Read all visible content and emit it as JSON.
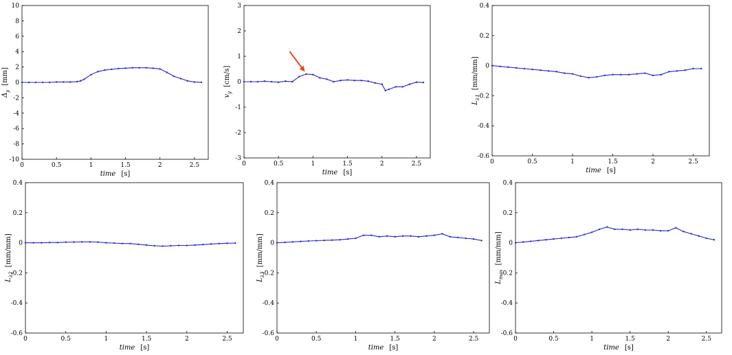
{
  "colors": {
    "series": "#2323d8",
    "axis": "#000000",
    "annotation": "#e8481f"
  },
  "chart_data": [
    {
      "type": "line",
      "xlabel_main": "time",
      "xlabel_unit": "[s]",
      "ylabel_sym": "Δ",
      "ylabel_sub": "y",
      "ylabel_unit": "[mm]",
      "xlim": [
        0,
        2.7
      ],
      "ylim": [
        -10,
        10
      ],
      "xticks": [
        0,
        0.5,
        1,
        1.5,
        2,
        2.5
      ],
      "xtick_labels": [
        "0",
        "0.5",
        "1",
        "1.5",
        "2",
        "2.5"
      ],
      "yticks": [
        -10,
        -8,
        -6,
        -4,
        -2,
        0,
        2,
        4,
        6,
        8,
        10
      ],
      "ytick_labels": [
        "-10",
        "-8",
        "-6",
        "-4",
        "-2",
        "0",
        "2",
        "4",
        "6",
        "8",
        "10"
      ],
      "series": [
        {
          "x": [
            0,
            0.1,
            0.2,
            0.3,
            0.4,
            0.5,
            0.6,
            0.7,
            0.8,
            0.85,
            0.9,
            1.0,
            1.1,
            1.2,
            1.3,
            1.4,
            1.5,
            1.6,
            1.7,
            1.8,
            1.9,
            2.0,
            2.1,
            2.2,
            2.3,
            2.4,
            2.5,
            2.6
          ],
          "y": [
            0,
            0,
            0,
            0,
            0,
            0.05,
            0.05,
            0.05,
            0.1,
            0.2,
            0.4,
            1.0,
            1.4,
            1.6,
            1.7,
            1.8,
            1.85,
            1.9,
            1.9,
            1.9,
            1.85,
            1.75,
            1.3,
            0.8,
            0.5,
            0.2,
            0.05,
            0.02
          ]
        }
      ],
      "grid": false
    },
    {
      "type": "line",
      "xlabel_main": "time",
      "xlabel_unit": "[s]",
      "ylabel_sym": "v",
      "ylabel_sub": "y",
      "ylabel_unit": "[cm/s]",
      "xlim": [
        0,
        2.7
      ],
      "ylim": [
        -3,
        3
      ],
      "xticks": [
        0,
        0.5,
        1,
        1.5,
        2,
        2.5
      ],
      "xtick_labels": [
        "0",
        "0.5",
        "1",
        "1.5",
        "2",
        "2.5"
      ],
      "yticks": [
        -3,
        -2,
        -1,
        0,
        1,
        2,
        3
      ],
      "ytick_labels": [
        "-3",
        "-2",
        "-1",
        "0",
        "1",
        "2",
        "3"
      ],
      "series": [
        {
          "x": [
            0,
            0.1,
            0.2,
            0.3,
            0.4,
            0.5,
            0.6,
            0.7,
            0.8,
            0.9,
            1.0,
            1.1,
            1.2,
            1.3,
            1.4,
            1.5,
            1.6,
            1.7,
            1.8,
            1.9,
            2.0,
            2.05,
            2.1,
            2.2,
            2.3,
            2.4,
            2.5,
            2.6
          ],
          "y": [
            0,
            0,
            0,
            0.02,
            0,
            -0.02,
            0.02,
            0,
            0.2,
            0.3,
            0.28,
            0.15,
            0.1,
            0,
            0.05,
            0.07,
            0.05,
            0.05,
            0.02,
            -0.05,
            -0.1,
            -0.35,
            -0.3,
            -0.2,
            -0.2,
            -0.1,
            -0.02,
            -0.03
          ]
        }
      ],
      "annotation": "red-arrow-pointing-at-peak",
      "grid": false
    },
    {
      "type": "line",
      "xlabel_main": "time",
      "xlabel_unit": "[s]",
      "ylabel_sym": "L",
      "ylabel_sub": "λ1",
      "ylabel_unit": "[mm/mm]",
      "xlim": [
        0,
        2.7
      ],
      "ylim": [
        -0.6,
        0.4
      ],
      "xticks": [
        0,
        0.5,
        1,
        1.5,
        2,
        2.5
      ],
      "xtick_labels": [
        "0",
        "0.5",
        "1",
        "1.5",
        "2",
        "2.5"
      ],
      "yticks": [
        -0.6,
        -0.4,
        -0.2,
        0,
        0.2,
        0.4
      ],
      "ytick_labels": [
        "-0.6",
        "-0.4",
        "-0.2",
        "0",
        "0.2",
        "0.4"
      ],
      "series": [
        {
          "x": [
            0,
            0.1,
            0.2,
            0.3,
            0.4,
            0.5,
            0.6,
            0.7,
            0.8,
            0.9,
            1.0,
            1.1,
            1.2,
            1.3,
            1.4,
            1.5,
            1.6,
            1.7,
            1.8,
            1.9,
            2.0,
            2.1,
            2.2,
            2.3,
            2.4,
            2.5,
            2.6
          ],
          "y": [
            0,
            -0.005,
            -0.01,
            -0.015,
            -0.02,
            -0.025,
            -0.03,
            -0.035,
            -0.04,
            -0.05,
            -0.055,
            -0.07,
            -0.08,
            -0.075,
            -0.065,
            -0.06,
            -0.06,
            -0.06,
            -0.055,
            -0.05,
            -0.065,
            -0.06,
            -0.04,
            -0.035,
            -0.03,
            -0.02,
            -0.02
          ]
        }
      ],
      "grid": false
    },
    {
      "type": "line",
      "xlabel_main": "time",
      "xlabel_unit": "[s]",
      "ylabel_sym": "L",
      "ylabel_sub": "λ2",
      "ylabel_unit": "[mm/mm]",
      "xlim": [
        0,
        2.7
      ],
      "ylim": [
        -0.6,
        0.4
      ],
      "xticks": [
        0,
        0.5,
        1,
        1.5,
        2,
        2.5
      ],
      "xtick_labels": [
        "0",
        "0.5",
        "1",
        "1.5",
        "2",
        "2.5"
      ],
      "yticks": [
        -0.6,
        -0.4,
        -0.2,
        0,
        0.2,
        0.4
      ],
      "ytick_labels": [
        "-0.6",
        "-0.4",
        "-0.2",
        "0",
        "0.2",
        "0.4"
      ],
      "series": [
        {
          "x": [
            0,
            0.1,
            0.2,
            0.3,
            0.4,
            0.5,
            0.6,
            0.7,
            0.8,
            0.9,
            1.0,
            1.1,
            1.2,
            1.3,
            1.4,
            1.5,
            1.6,
            1.7,
            1.8,
            1.9,
            2.0,
            2.1,
            2.2,
            2.3,
            2.4,
            2.5,
            2.6
          ],
          "y": [
            0,
            0,
            0,
            0.002,
            0.002,
            0.004,
            0.005,
            0.006,
            0.006,
            0.005,
            0,
            -0.002,
            -0.005,
            -0.005,
            -0.01,
            -0.015,
            -0.02,
            -0.022,
            -0.02,
            -0.018,
            -0.018,
            -0.015,
            -0.012,
            -0.008,
            -0.005,
            -0.003,
            -0.002
          ]
        }
      ],
      "grid": false
    },
    {
      "type": "line",
      "xlabel_main": "time",
      "xlabel_unit": "[s]",
      "ylabel_sym": "L",
      "ylabel_sub": "λ3",
      "ylabel_unit": "[mm/mm]",
      "xlim": [
        0,
        2.7
      ],
      "ylim": [
        -0.6,
        0.4
      ],
      "xticks": [
        0,
        0.5,
        1,
        1.5,
        2,
        2.5
      ],
      "xtick_labels": [
        "0",
        "0.5",
        "1",
        "1.5",
        "2",
        "2.5"
      ],
      "yticks": [
        -0.6,
        -0.4,
        -0.2,
        0,
        0.2,
        0.4
      ],
      "ytick_labels": [
        "-0.6",
        "-0.4",
        "-0.2",
        "0",
        "0.2",
        "0.4"
      ],
      "series": [
        {
          "x": [
            0,
            0.1,
            0.2,
            0.3,
            0.4,
            0.5,
            0.6,
            0.7,
            0.8,
            0.9,
            1.0,
            1.1,
            1.2,
            1.3,
            1.4,
            1.5,
            1.6,
            1.7,
            1.8,
            1.9,
            2.0,
            2.1,
            2.2,
            2.3,
            2.4,
            2.5,
            2.6
          ],
          "y": [
            0,
            0.003,
            0.006,
            0.009,
            0.012,
            0.014,
            0.016,
            0.018,
            0.02,
            0.025,
            0.03,
            0.05,
            0.05,
            0.04,
            0.045,
            0.04,
            0.045,
            0.045,
            0.04,
            0.045,
            0.05,
            0.06,
            0.04,
            0.035,
            0.03,
            0.025,
            0.015
          ]
        }
      ],
      "grid": false
    },
    {
      "type": "line",
      "xlabel_main": "time",
      "xlabel_unit": "[s]",
      "ylabel_sym": "L",
      "ylabel_sub": "max",
      "ylabel_unit": "[mm/mm]",
      "xlim": [
        0,
        2.7
      ],
      "ylim": [
        -0.6,
        0.4
      ],
      "xticks": [
        0,
        0.5,
        1,
        1.5,
        2,
        2.5
      ],
      "xtick_labels": [
        "0",
        "0.5",
        "1",
        "1.5",
        "2",
        "2.5"
      ],
      "yticks": [
        -0.6,
        -0.4,
        -0.2,
        0,
        0.2,
        0.4
      ],
      "ytick_labels": [
        "-0.6",
        "-0.4",
        "-0.2",
        "0",
        "0.2",
        "0.4"
      ],
      "series": [
        {
          "x": [
            0,
            0.1,
            0.2,
            0.3,
            0.4,
            0.5,
            0.6,
            0.7,
            0.8,
            0.9,
            1.0,
            1.1,
            1.2,
            1.3,
            1.4,
            1.5,
            1.6,
            1.7,
            1.8,
            1.9,
            2.0,
            2.1,
            2.2,
            2.3,
            2.4,
            2.5,
            2.6
          ],
          "y": [
            0,
            0.005,
            0.01,
            0.015,
            0.02,
            0.025,
            0.03,
            0.035,
            0.04,
            0.055,
            0.07,
            0.09,
            0.105,
            0.09,
            0.09,
            0.085,
            0.09,
            0.085,
            0.085,
            0.08,
            0.08,
            0.1,
            0.075,
            0.06,
            0.045,
            0.03,
            0.02
          ]
        }
      ],
      "grid": false
    }
  ]
}
